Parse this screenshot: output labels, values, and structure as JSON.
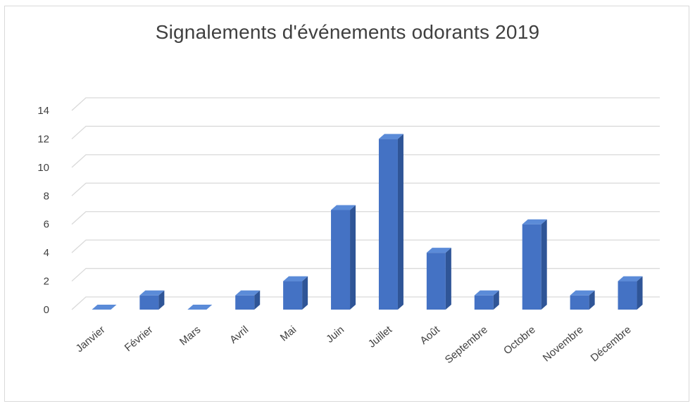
{
  "chart_data": {
    "type": "bar",
    "title": "Signalements d'événements odorants 2019",
    "categories": [
      "Janvier",
      "Février",
      "Mars",
      "Avril",
      "Mai",
      "Juin",
      "Juillet",
      "Août",
      "Septembre",
      "Octobre",
      "Novembre",
      "Décembre"
    ],
    "values": [
      0,
      1,
      0,
      1,
      2,
      7,
      12,
      4,
      1,
      6,
      1,
      2
    ],
    "xlabel": "",
    "ylabel": "",
    "ylim": [
      0,
      14
    ],
    "yticks": [
      0,
      2,
      4,
      6,
      8,
      10,
      12,
      14
    ],
    "grid": true,
    "legend": "none",
    "style": "3d-column",
    "bar_color": "#4472c4"
  }
}
